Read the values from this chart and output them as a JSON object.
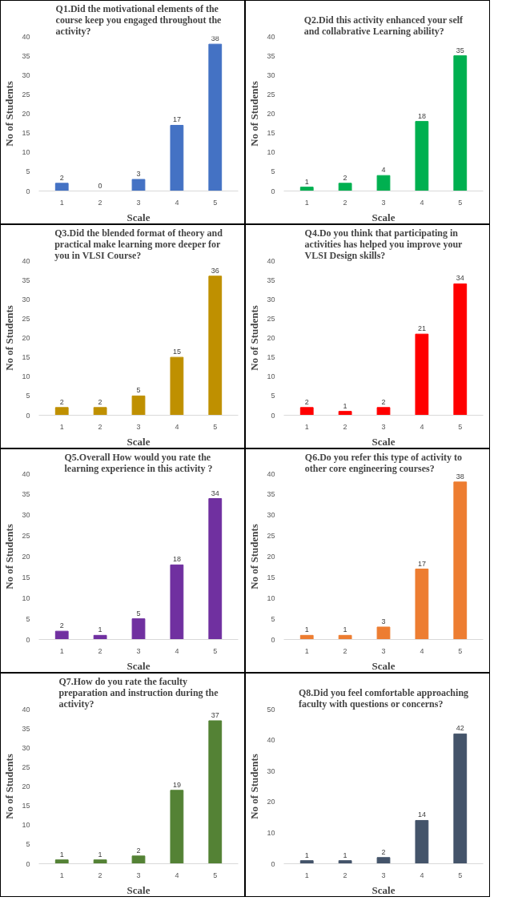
{
  "chart_data": [
    {
      "type": "bar",
      "title": "Q1.Did the motivational elements of the course keep you engaged throughout the activity?",
      "xlabel": "Scale",
      "ylabel": "No of Students",
      "categories": [
        "1",
        "2",
        "3",
        "4",
        "5"
      ],
      "values": [
        2,
        0,
        3,
        17,
        38
      ],
      "color": "#4472c4",
      "ylim": [
        0,
        40
      ],
      "yticks": [
        0,
        5,
        10,
        15,
        20,
        25,
        30,
        35,
        40
      ],
      "data_labels": true,
      "grid": false
    },
    {
      "type": "bar",
      "title": "Q2.Did this activity enhanced your self and collabrative Learning ability?",
      "xlabel": "Scale",
      "ylabel": "No of Students",
      "categories": [
        "1",
        "2",
        "3",
        "4",
        "5"
      ],
      "values": [
        1,
        2,
        4,
        18,
        35
      ],
      "color": "#00b050",
      "ylim": [
        0,
        40
      ],
      "yticks": [
        0,
        5,
        10,
        15,
        20,
        25,
        30,
        35,
        40
      ],
      "data_labels": true,
      "grid": false
    },
    {
      "type": "bar",
      "title": "Q3.Did the blended format of theory and practical make learning more deeper for you in VLSI Course?",
      "xlabel": "Scale",
      "ylabel": "No of Students",
      "categories": [
        "1",
        "2",
        "3",
        "4",
        "5"
      ],
      "values": [
        2,
        2,
        5,
        15,
        36
      ],
      "color": "#bf9000",
      "ylim": [
        0,
        40
      ],
      "yticks": [
        0,
        5,
        10,
        15,
        20,
        25,
        30,
        35,
        40
      ],
      "data_labels": true,
      "grid": false
    },
    {
      "type": "bar",
      "title": "Q4.Do you think that participating in activities has helped you improve your VLSI Design skills?",
      "xlabel": "Scale",
      "ylabel": "No of Students",
      "categories": [
        "1",
        "2",
        "3",
        "4",
        "5"
      ],
      "values": [
        2,
        1,
        2,
        21,
        34
      ],
      "color": "#ff0000",
      "ylim": [
        0,
        40
      ],
      "yticks": [
        0,
        5,
        10,
        15,
        20,
        25,
        30,
        35,
        40
      ],
      "data_labels": true,
      "grid": false
    },
    {
      "type": "bar",
      "title": "Q5.Overall How would you rate the learning experience in this activity ?",
      "xlabel": "Scale",
      "ylabel": "No of Students",
      "categories": [
        "1",
        "2",
        "3",
        "4",
        "5"
      ],
      "values": [
        2,
        1,
        5,
        18,
        34
      ],
      "color": "#7030a0",
      "ylim": [
        0,
        40
      ],
      "yticks": [
        0,
        5,
        10,
        15,
        20,
        25,
        30,
        35,
        40
      ],
      "data_labels": true,
      "grid": false
    },
    {
      "type": "bar",
      "title": "Q6.Do you refer this type of activity to other core engineering courses?",
      "xlabel": "Scale",
      "ylabel": "No of Students",
      "categories": [
        "1",
        "2",
        "3",
        "4",
        "5"
      ],
      "values": [
        1,
        1,
        3,
        17,
        38
      ],
      "color": "#ed7d31",
      "ylim": [
        0,
        40
      ],
      "yticks": [
        0,
        5,
        10,
        15,
        20,
        25,
        30,
        35,
        40
      ],
      "data_labels": true,
      "grid": false
    },
    {
      "type": "bar",
      "title": "Q7.How do you rate the faculty preparation and instruction during the activity?",
      "xlabel": "Scale",
      "ylabel": "No of Students",
      "categories": [
        "1",
        "2",
        "3",
        "4",
        "5"
      ],
      "values": [
        1,
        1,
        2,
        19,
        37
      ],
      "color": "#548235",
      "ylim": [
        0,
        40
      ],
      "yticks": [
        0,
        5,
        10,
        15,
        20,
        25,
        30,
        35,
        40
      ],
      "data_labels": true,
      "grid": false
    },
    {
      "type": "bar",
      "title": "Q8.Did you feel comfortable approaching faculty with questions or concerns?",
      "xlabel": "Scale",
      "ylabel": "No of Students",
      "categories": [
        "1",
        "2",
        "3",
        "4",
        "5"
      ],
      "values": [
        1,
        1,
        2,
        14,
        42
      ],
      "color": "#44546a",
      "ylim": [
        0,
        50
      ],
      "yticks": [
        0,
        10,
        20,
        30,
        40,
        50
      ],
      "data_labels": true,
      "grid": false
    }
  ]
}
